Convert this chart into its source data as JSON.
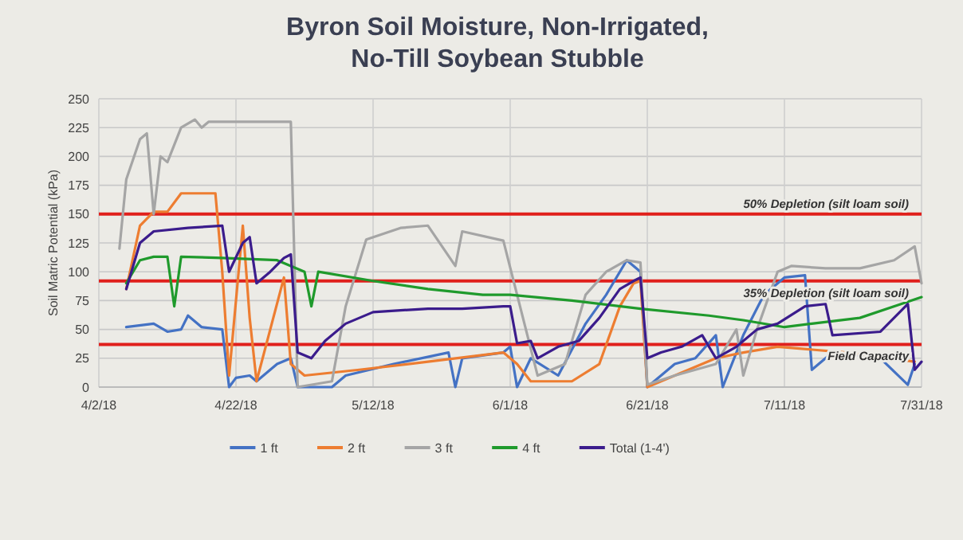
{
  "chart_data": {
    "type": "line",
    "title": "Byron Soil Moisture, Non-Irrigated, No-Till Soybean Stubble",
    "ylabel": "Soil Matric Potential (kPa)",
    "xlim": [
      "2018-04-02",
      "2018-07-31"
    ],
    "xticks": [
      {
        "value": "2018-04-02",
        "label": "4/2/18"
      },
      {
        "value": "2018-04-22",
        "label": "4/22/18"
      },
      {
        "value": "2018-05-12",
        "label": "5/12/18"
      },
      {
        "value": "2018-06-01",
        "label": "6/1/18"
      },
      {
        "value": "2018-06-21",
        "label": "6/21/18"
      },
      {
        "value": "2018-07-11",
        "label": "7/11/18"
      },
      {
        "value": "2018-07-31",
        "label": "7/31/18"
      }
    ],
    "ylim": [
      0,
      250
    ],
    "yticks": [
      0,
      25,
      50,
      75,
      100,
      125,
      150,
      175,
      200,
      225,
      250
    ],
    "grid": true,
    "legend": "bottom",
    "line_style": "solid",
    "ref_lines": [
      {
        "axis": "y",
        "value": 150,
        "label": "50% Depletion (silt loam soil)",
        "color": "#e0201c"
      },
      {
        "axis": "y",
        "value": 92,
        "label": "35% Depletion (silt loam soil)",
        "color": "#e0201c"
      },
      {
        "axis": "y",
        "value": 37,
        "label": "Field Capacity",
        "color": "#e0201c"
      }
    ],
    "series": [
      {
        "name": "1 ft",
        "color": "#4472c4",
        "x": [
          "2018-04-06",
          "2018-04-10",
          "2018-04-12",
          "2018-04-14",
          "2018-04-15",
          "2018-04-17",
          "2018-04-20",
          "2018-04-21",
          "2018-04-22",
          "2018-04-24",
          "2018-04-25",
          "2018-04-28",
          "2018-04-30",
          "2018-05-01",
          "2018-05-06",
          "2018-05-08",
          "2018-05-15",
          "2018-05-23",
          "2018-05-24",
          "2018-05-25",
          "2018-05-31",
          "2018-06-01",
          "2018-06-02",
          "2018-06-04",
          "2018-06-08",
          "2018-06-12",
          "2018-06-15",
          "2018-06-18",
          "2018-06-20",
          "2018-06-21",
          "2018-06-25",
          "2018-06-28",
          "2018-07-01",
          "2018-07-02",
          "2018-07-05",
          "2018-07-08",
          "2018-07-11",
          "2018-07-14",
          "2018-07-15",
          "2018-07-18",
          "2018-07-25",
          "2018-07-29",
          "2018-07-30"
        ],
        "values": [
          52,
          55,
          48,
          50,
          62,
          52,
          50,
          0,
          8,
          10,
          5,
          20,
          25,
          0,
          0,
          10,
          20,
          30,
          0,
          25,
          30,
          35,
          0,
          25,
          10,
          55,
          80,
          110,
          100,
          0,
          20,
          25,
          45,
          0,
          45,
          80,
          95,
          97,
          15,
          30,
          25,
          2,
          20
        ]
      },
      {
        "name": "2 ft",
        "color": "#ed7d31",
        "x": [
          "2018-04-06",
          "2018-04-08",
          "2018-04-10",
          "2018-04-12",
          "2018-04-14",
          "2018-04-19",
          "2018-04-20",
          "2018-04-21",
          "2018-04-23",
          "2018-04-24",
          "2018-04-25",
          "2018-04-27",
          "2018-04-29",
          "2018-04-30",
          "2018-05-02",
          "2018-05-10",
          "2018-05-20",
          "2018-05-31",
          "2018-06-02",
          "2018-06-04",
          "2018-06-10",
          "2018-06-14",
          "2018-06-17",
          "2018-06-19",
          "2018-06-20",
          "2018-06-21",
          "2018-06-25",
          "2018-07-01",
          "2018-07-05",
          "2018-07-10",
          "2018-07-20",
          "2018-07-30"
        ],
        "values": [
          85,
          140,
          152,
          152,
          168,
          168,
          100,
          10,
          140,
          60,
          5,
          50,
          95,
          20,
          10,
          15,
          22,
          30,
          20,
          5,
          5,
          20,
          70,
          90,
          92,
          0,
          10,
          25,
          30,
          35,
          30,
          22
        ]
      },
      {
        "name": "3 ft",
        "color": "#a5a5a5",
        "x": [
          "2018-04-05",
          "2018-04-06",
          "2018-04-08",
          "2018-04-09",
          "2018-04-10",
          "2018-04-11",
          "2018-04-12",
          "2018-04-14",
          "2018-04-16",
          "2018-04-17",
          "2018-04-18",
          "2018-04-30",
          "2018-05-01",
          "2018-05-06",
          "2018-05-08",
          "2018-05-11",
          "2018-05-16",
          "2018-05-20",
          "2018-05-24",
          "2018-05-25",
          "2018-05-31",
          "2018-06-05",
          "2018-06-09",
          "2018-06-12",
          "2018-06-15",
          "2018-06-18",
          "2018-06-20",
          "2018-06-21",
          "2018-06-25",
          "2018-07-01",
          "2018-07-03",
          "2018-07-04",
          "2018-07-05",
          "2018-07-07",
          "2018-07-10",
          "2018-07-12",
          "2018-07-17",
          "2018-07-22",
          "2018-07-27",
          "2018-07-30",
          "2018-07-31"
        ],
        "values": [
          120,
          180,
          215,
          220,
          150,
          200,
          195,
          225,
          232,
          225,
          230,
          230,
          0,
          5,
          70,
          128,
          138,
          140,
          105,
          135,
          127,
          10,
          20,
          80,
          100,
          110,
          108,
          2,
          10,
          20,
          40,
          50,
          10,
          50,
          100,
          105,
          103,
          103,
          110,
          122,
          90
        ]
      },
      {
        "name": "4 ft",
        "color": "#1f9a2c",
        "x": [
          "2018-04-06",
          "2018-04-08",
          "2018-04-10",
          "2018-04-12",
          "2018-04-13",
          "2018-04-14",
          "2018-04-20",
          "2018-04-28",
          "2018-05-02",
          "2018-05-03",
          "2018-05-04",
          "2018-05-12",
          "2018-05-20",
          "2018-05-28",
          "2018-06-01",
          "2018-06-10",
          "2018-06-20",
          "2018-06-30",
          "2018-07-05",
          "2018-07-11",
          "2018-07-15",
          "2018-07-22",
          "2018-07-28",
          "2018-07-31"
        ],
        "values": [
          90,
          110,
          113,
          113,
          70,
          113,
          112,
          110,
          100,
          70,
          100,
          92,
          85,
          80,
          80,
          75,
          68,
          62,
          58,
          52,
          55,
          60,
          72,
          78
        ]
      },
      {
        "name": "Total (1-4')",
        "color": "#3b1c8c",
        "x": [
          "2018-04-06",
          "2018-04-08",
          "2018-04-10",
          "2018-04-15",
          "2018-04-20",
          "2018-04-21",
          "2018-04-23",
          "2018-04-24",
          "2018-04-25",
          "2018-04-27",
          "2018-04-29",
          "2018-04-30",
          "2018-05-01",
          "2018-05-03",
          "2018-05-05",
          "2018-05-08",
          "2018-05-12",
          "2018-05-20",
          "2018-05-25",
          "2018-05-31",
          "2018-06-01",
          "2018-06-02",
          "2018-06-04",
          "2018-06-05",
          "2018-06-08",
          "2018-06-11",
          "2018-06-14",
          "2018-06-17",
          "2018-06-19",
          "2018-06-20",
          "2018-06-21",
          "2018-06-23",
          "2018-06-26",
          "2018-06-29",
          "2018-07-01",
          "2018-07-04",
          "2018-07-07",
          "2018-07-10",
          "2018-07-14",
          "2018-07-17",
          "2018-07-18",
          "2018-07-25",
          "2018-07-29",
          "2018-07-30",
          "2018-07-31"
        ],
        "values": [
          85,
          125,
          135,
          138,
          140,
          100,
          125,
          130,
          90,
          100,
          112,
          115,
          30,
          25,
          40,
          55,
          65,
          68,
          68,
          70,
          70,
          38,
          40,
          25,
          35,
          40,
          60,
          85,
          92,
          95,
          25,
          30,
          35,
          45,
          25,
          35,
          50,
          55,
          70,
          72,
          45,
          48,
          72,
          15,
          22
        ]
      }
    ]
  }
}
